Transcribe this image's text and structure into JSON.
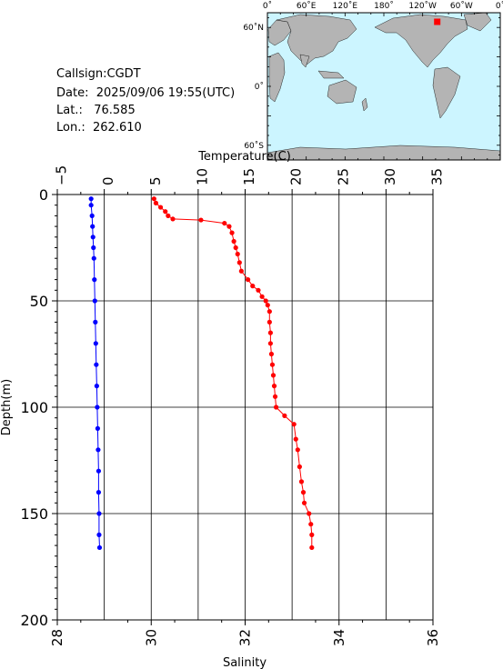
{
  "station": {
    "callsign_label": "Callsign:CGDT",
    "date_label": "Date:",
    "date_value": "2025/09/06 19:55(UTC)",
    "lat_label": "Lat.:",
    "lat_value": "76.585",
    "lon_label": "Lon.:",
    "lon_value": "262.610"
  },
  "map": {
    "top_ticks": [
      "0˚",
      "60˚E",
      "120˚E",
      "180˚",
      "120˚W",
      "60˚W",
      "0˚"
    ],
    "left_ticks": [
      "60˚N",
      "0˚",
      "60˚S"
    ],
    "ocean_color": "#ccf5ff",
    "land_color": "#b4b4b4",
    "marker_color": "#ff0000",
    "marker_lon": 262.61,
    "marker_lat": 76.585
  },
  "chart_data": {
    "type": "line",
    "temperature_axis": {
      "label": "Temperature(C)",
      "range": [
        -5,
        35
      ],
      "ticks": [
        "−5",
        "0",
        "5",
        "10",
        "15",
        "20",
        "25",
        "30",
        "35"
      ]
    },
    "salinity_axis": {
      "label": "Salinity",
      "range": [
        28,
        36
      ],
      "ticks": [
        "28",
        "30",
        "32",
        "34",
        "36"
      ]
    },
    "depth_axis": {
      "label": "Depth(m)",
      "range": [
        0,
        200
      ],
      "ticks": [
        "0",
        "50",
        "100",
        "150",
        "200"
      ]
    },
    "grid": true,
    "series": [
      {
        "variable": "salinity",
        "color": "#0000ff",
        "points": [
          [
            28.72,
            2
          ],
          [
            28.72,
            5
          ],
          [
            28.74,
            10
          ],
          [
            28.75,
            15
          ],
          [
            28.76,
            20
          ],
          [
            28.77,
            25
          ],
          [
            28.78,
            30
          ],
          [
            28.79,
            40
          ],
          [
            28.8,
            50
          ],
          [
            28.81,
            60
          ],
          [
            28.82,
            70
          ],
          [
            28.83,
            80
          ],
          [
            28.84,
            90
          ],
          [
            28.85,
            100
          ],
          [
            28.86,
            110
          ],
          [
            28.87,
            120
          ],
          [
            28.88,
            130
          ],
          [
            28.88,
            140
          ],
          [
            28.89,
            150
          ],
          [
            28.89,
            160
          ],
          [
            28.9,
            166
          ]
        ]
      },
      {
        "variable": "temperature",
        "color": "#ff0000",
        "points": [
          [
            5.3,
            2
          ],
          [
            5.5,
            4
          ],
          [
            6.0,
            6
          ],
          [
            6.5,
            8
          ],
          [
            6.8,
            10
          ],
          [
            7.3,
            11.5
          ],
          [
            10.3,
            12
          ],
          [
            12.8,
            13.5
          ],
          [
            13.3,
            15
          ],
          [
            13.6,
            18
          ],
          [
            13.8,
            22
          ],
          [
            14.0,
            25
          ],
          [
            14.2,
            28
          ],
          [
            14.4,
            32
          ],
          [
            14.6,
            36
          ],
          [
            15.3,
            40
          ],
          [
            15.8,
            43
          ],
          [
            16.4,
            45
          ],
          [
            16.8,
            48
          ],
          [
            17.2,
            50
          ],
          [
            17.4,
            52
          ],
          [
            17.6,
            55
          ],
          [
            17.6,
            60
          ],
          [
            17.7,
            65
          ],
          [
            17.7,
            70
          ],
          [
            17.8,
            75
          ],
          [
            17.9,
            80
          ],
          [
            18.0,
            85
          ],
          [
            18.1,
            90
          ],
          [
            18.2,
            95
          ],
          [
            18.3,
            100
          ],
          [
            19.2,
            104
          ],
          [
            20.2,
            108
          ],
          [
            20.4,
            115
          ],
          [
            20.6,
            120
          ],
          [
            20.8,
            128
          ],
          [
            21.0,
            135
          ],
          [
            21.2,
            140
          ],
          [
            21.3,
            145
          ],
          [
            21.8,
            150
          ],
          [
            22.0,
            155
          ],
          [
            22.1,
            160
          ],
          [
            22.1,
            166
          ]
        ]
      }
    ]
  }
}
